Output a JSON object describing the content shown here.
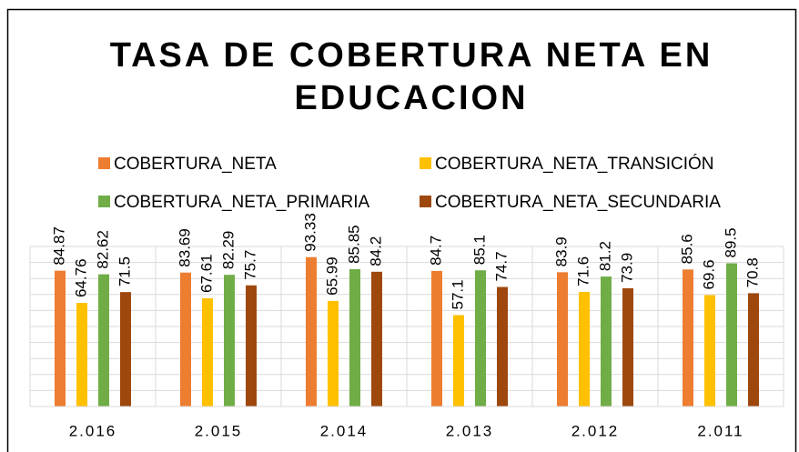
{
  "chart_data": {
    "type": "bar",
    "title": [
      "TASA DE COBERTURA NETA EN",
      "EDUCACION"
    ],
    "categories": [
      "2.016",
      "2.015",
      "2.014",
      "2.013",
      "2.012",
      "2.011"
    ],
    "series": [
      {
        "name": "COBERTURA_NETA",
        "color": "#ed7d31",
        "values": [
          84.87,
          83.69,
          93.33,
          84.7,
          83.9,
          85.6
        ]
      },
      {
        "name": "COBERTURA_NETA_TRANSICIÓN",
        "color": "#ffc000",
        "values": [
          64.76,
          67.61,
          65.99,
          57.1,
          71.6,
          69.6
        ]
      },
      {
        "name": "COBERTURA_NETA_PRIMARIA",
        "color": "#70ad47",
        "values": [
          82.62,
          82.29,
          85.85,
          85.1,
          81.2,
          89.5
        ]
      },
      {
        "name": "COBERTURA_NETA_SECUNDARIA",
        "color": "#9e480e",
        "values": [
          71.5,
          75.7,
          84.2,
          74.7,
          73.9,
          70.8
        ]
      }
    ],
    "ylim": [
      0,
      100
    ],
    "yticks": [
      0,
      10,
      20,
      30,
      40,
      50,
      60,
      70,
      80,
      90,
      100
    ],
    "grid": true
  }
}
